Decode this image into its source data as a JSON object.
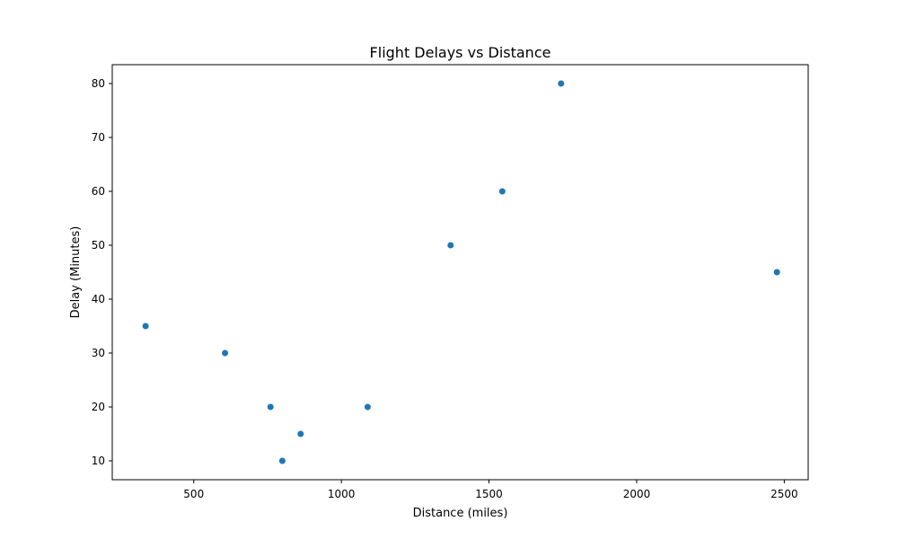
{
  "chart_data": {
    "type": "scatter",
    "title": "Flight Delays vs Distance",
    "xlabel": "Distance (miles)",
    "ylabel": "Delay (Minutes)",
    "xlim": [
      224,
      2581
    ],
    "ylim": [
      6.5,
      83.5
    ],
    "xticks": [
      500,
      1000,
      1500,
      2000,
      2500
    ],
    "yticks": [
      10,
      20,
      30,
      40,
      50,
      60,
      70,
      80
    ],
    "grid": false,
    "color": "#1f77b4",
    "series": [
      {
        "points": [
          {
            "x": 337,
            "y": 35
          },
          {
            "x": 606,
            "y": 30
          },
          {
            "x": 760,
            "y": 20
          },
          {
            "x": 800,
            "y": 10
          },
          {
            "x": 862,
            "y": 15
          },
          {
            "x": 1089,
            "y": 20
          },
          {
            "x": 1370,
            "y": 50
          },
          {
            "x": 1545,
            "y": 60
          },
          {
            "x": 1744,
            "y": 80
          },
          {
            "x": 2475,
            "y": 45
          }
        ]
      }
    ]
  }
}
